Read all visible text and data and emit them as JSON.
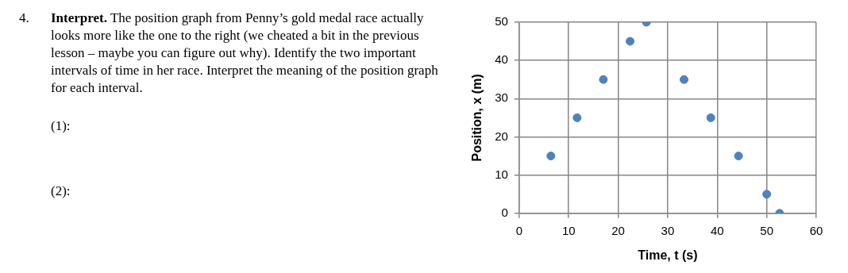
{
  "chart_data": {
    "type": "scatter",
    "xlabel": "Time, t (s)",
    "ylabel": "Position, x (m)",
    "annotations": [
      "4.",
      "Interpret.  The position graph from Penny’s gold medal race actually looks more like the one to the right (we cheated a bit in the previous lesson – maybe you can figure out why). Identify the two important intervals of time in her race. Interpret the meaning of the position graph for each interval.",
      "(1):",
      "(2):"
    ],
    "series": [
      {
        "color": "#4f81bd",
        "x": [
          6.4,
          11.7,
          17.0,
          22.4,
          25.7,
          33.3,
          38.7,
          44.3,
          50.0,
          52.6
        ],
        "values": [
          15,
          25,
          35,
          45,
          50,
          35,
          25,
          15,
          5,
          0
        ]
      }
    ],
    "xlim": [
      0,
      60
    ],
    "xticks": [
      0,
      10,
      20,
      30,
      40,
      50,
      60
    ],
    "ylim": [
      0,
      50
    ],
    "yticks": [
      0,
      10,
      20,
      30,
      40,
      50
    ],
    "grid": true,
    "marker": "circle",
    "legend": false
  }
}
